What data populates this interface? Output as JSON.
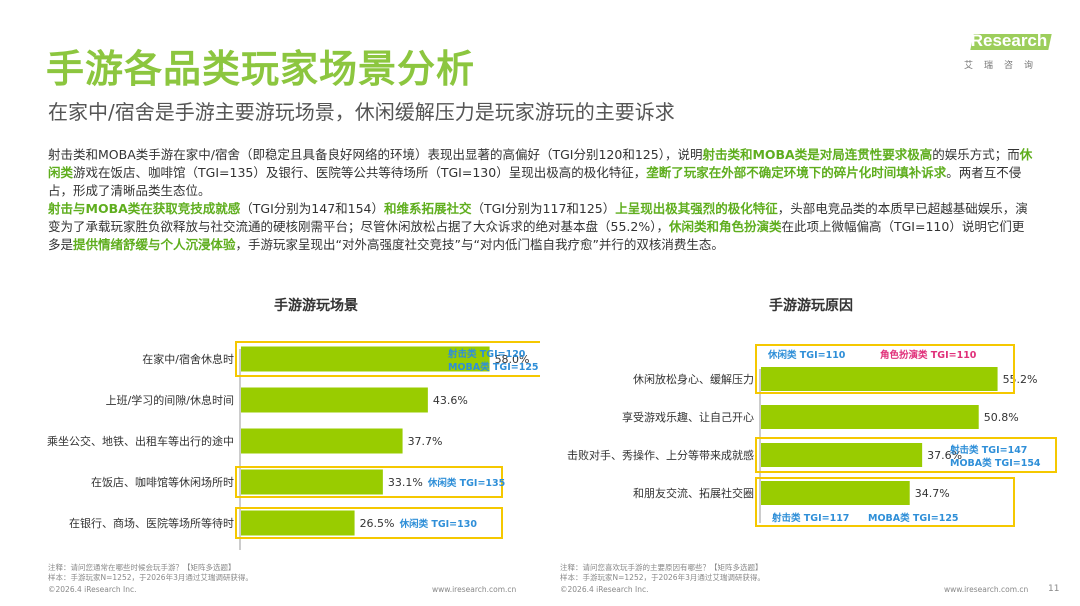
{
  "header": {
    "title": "手游各品类玩家场景分析",
    "subtitle": "在家中/宿舍是手游主要游玩场景，休闲缓解压力是玩家游玩的主要诉求",
    "logo_text": "iResearch",
    "logo_subtext": "艾瑞咨询"
  },
  "body_paragraphs": [
    [
      {
        "t": "射击类和MOBA类手游在家中/宿舍（即稳定且具备良好网络的环境）表现出显著的高偏好（TGI分别120和125），说明",
        "hl": false
      },
      {
        "t": "射击类和MOBA类是对局连贯性要求极高",
        "hl": true
      },
      {
        "t": "的娱乐方式；而",
        "hl": false
      },
      {
        "t": "休闲类",
        "hl": true
      },
      {
        "t": "游戏在饭店、咖啡馆（TGI=135）及银行、医院等公共等待场所（TGI=130）呈现出极高的极化特征，",
        "hl": false
      },
      {
        "t": "垄断了玩家在外部不确定环境下的碎片化时间填补诉求",
        "hl": true
      },
      {
        "t": "。两者互不侵占，形成了清晰品类生态位。",
        "hl": false
      }
    ],
    [
      {
        "t": "射击与MOBA类在获取竞技成就感",
        "hl": true
      },
      {
        "t": "（TGI分别为147和154）",
        "hl": false
      },
      {
        "t": "和维系拓展社交",
        "hl": true
      },
      {
        "t": "（TGI分别为117和125）",
        "hl": false
      },
      {
        "t": "上呈现出极其强烈的极化特征",
        "hl": true
      },
      {
        "t": "，头部电竞品类的本质早已超越基础娱乐，演变为了承载玩家胜负欲释放与社交流通的硬核刚需平台；尽管休闲放松占据了大众诉求的绝对基本盘（55.2%），",
        "hl": false
      },
      {
        "t": "休闲类和角色扮演类",
        "hl": true
      },
      {
        "t": "在此项上微幅偏高（TGI=110）说明它们更多是",
        "hl": false
      },
      {
        "t": "提供情绪舒缓与个人沉浸体验",
        "hl": true
      },
      {
        "t": "，手游玩家呈现出“对外高强度社交竞技”与“对内低门槛自我疗愈”并行的双核消费生态。",
        "hl": false
      }
    ]
  ],
  "chart_data": [
    {
      "type": "bar",
      "orientation": "horizontal",
      "title": "手游游玩场景",
      "categories": [
        "在家中/宿舍休息时",
        "上班/学习的间隙/休息时间",
        "乘坐公交、地铁、出租车等出行的途中",
        "在饭店、咖啡馆等休闲场所时",
        "在银行、商场、医院等场所等待时"
      ],
      "values": [
        58.0,
        43.6,
        37.7,
        33.1,
        26.5
      ],
      "value_labels": [
        "58.0%",
        "43.6%",
        "37.7%",
        "33.1%",
        "26.5%"
      ],
      "xlim": [
        0,
        70
      ],
      "annotations": [
        {
          "row": 0,
          "lines": [
            "射击类 TGI=120",
            "MOBA类 TGI=125"
          ]
        },
        {
          "row": 3,
          "lines": [
            "休闲类 TGI=135"
          ]
        },
        {
          "row": 4,
          "lines": [
            "休闲类 TGI=130"
          ]
        }
      ]
    },
    {
      "type": "bar",
      "orientation": "horizontal",
      "title": "手游游玩原因",
      "categories": [
        "休闲放松身心、缓解压力",
        "享受游戏乐趣、让自己开心",
        "击败对手、秀操作、上分等带来成就感",
        "和朋友交流、拓展社交圈"
      ],
      "values": [
        55.2,
        50.8,
        37.6,
        34.7
      ],
      "value_labels": [
        "55.2%",
        "50.8%",
        "37.6%",
        "34.7%"
      ],
      "xlim": [
        0,
        70
      ],
      "annotations": [
        {
          "row": 0,
          "position": "above",
          "items": [
            {
              "text": "休闲类 TGI=110",
              "color": "#2f8fd8"
            },
            {
              "text": "角色扮演类 TGI=110",
              "color": "#e0307a"
            }
          ]
        },
        {
          "row": 2,
          "position": "right",
          "lines": [
            "射击类 TGI=147",
            "MOBA类 TGI=154"
          ]
        },
        {
          "row": 3,
          "position": "below",
          "items": [
            {
              "text": "射击类 TGI=117",
              "color": "#2f8fd8"
            },
            {
              "text": "MOBA类 TGI=125",
              "color": "#2f8fd8"
            }
          ]
        }
      ]
    }
  ],
  "footer": {
    "left_note1": "注释：请问您通常在哪些时候会玩手游？【矩阵多选题】",
    "left_note2": "样本：手游玩家N=1252，于2026年3月通过艾瑞调研获得。",
    "right_note1": "注释：请问您喜欢玩手游的主要原因有哪些？【矩阵多选题】",
    "right_note2": "样本：手游玩家N=1252，于2026年3月通过艾瑞调研获得。",
    "copyright": "©2026.4 iResearch Inc.",
    "url": "www.iresearch.com.cn",
    "page": "11"
  },
  "colors": {
    "accent": "#8cc63f",
    "bar": "#99cc00",
    "annotation_box": "#f5c800",
    "annotation_text": "#2f8fd8",
    "highlight_text": "#5fae1e"
  }
}
